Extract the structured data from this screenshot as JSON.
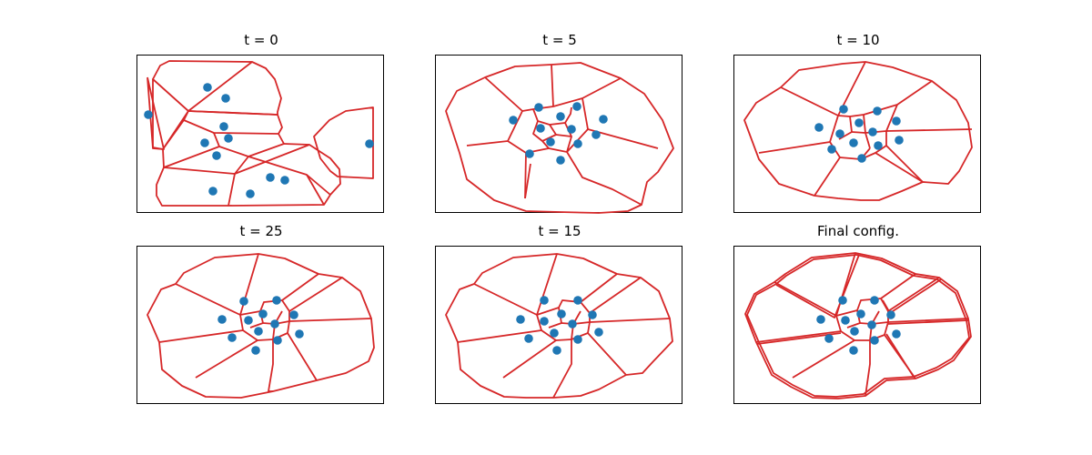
{
  "figure": {
    "panels": [
      {
        "title": "t = 0"
      },
      {
        "title": "t = 5"
      },
      {
        "title": "t = 10"
      },
      {
        "title": "t = 25"
      },
      {
        "title": "t = 15"
      },
      {
        "title": "Final config."
      }
    ]
  },
  "colors": {
    "cell_edge": "#d62728",
    "cell_center": "#1f77b4",
    "frame": "#000000"
  }
}
